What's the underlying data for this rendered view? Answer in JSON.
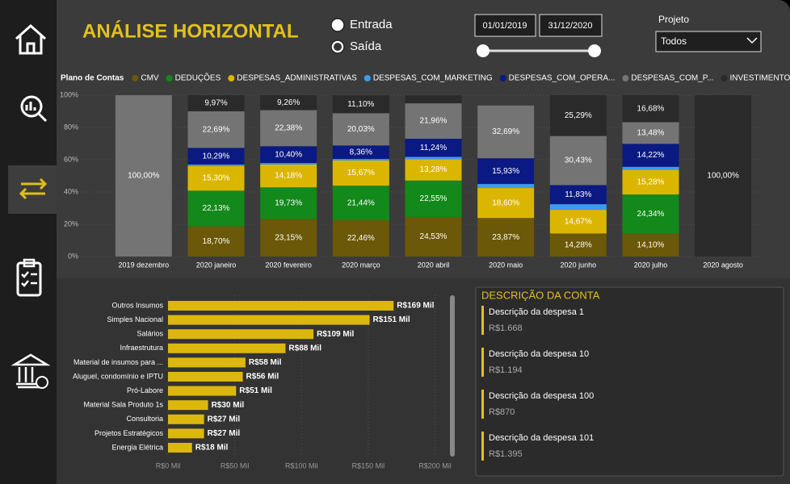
{
  "header": {
    "title": "ANÁLISE HORIZONTAL",
    "flow_options": [
      "Entrada",
      "Saída"
    ],
    "selected_flow": 1,
    "start_date": "01/01/2019",
    "end_date": "31/12/2020",
    "project_label": "Projeto",
    "project_value": "Todos"
  },
  "chart_data": [
    {
      "type": "stacked_bar",
      "legend_title": "Plano de Contas",
      "legend": "top",
      "grid": true,
      "categories": [
        "2019 dezembro",
        "2020 janeiro",
        "2020 fevereiro",
        "2020 março",
        "2020 abril",
        "2020 maio",
        "2020 junho",
        "2020 julho",
        "2020 agosto"
      ],
      "ylim": [
        0,
        100
      ],
      "yticks": [
        {
          "value": 0,
          "label": "0%"
        },
        {
          "value": 20,
          "label": "20%"
        },
        {
          "value": 40,
          "label": "40%"
        },
        {
          "value": 60,
          "label": "60%"
        },
        {
          "value": 80,
          "label": "80%"
        },
        {
          "value": 100,
          "label": "100%"
        }
      ],
      "series": [
        {
          "name": "CMV",
          "color": "#6b5808",
          "values": [
            null,
            18.7,
            23.15,
            22.46,
            24.53,
            23.87,
            14.28,
            14.1,
            null
          ],
          "value_labels": [
            null,
            "18,70%",
            "23,15%",
            "22,46%",
            "24,53%",
            "23,87%",
            "14,28%",
            "14,10%",
            null
          ]
        },
        {
          "name": "DEDUÇÕES",
          "color": "#12891a",
          "values": [
            null,
            22.13,
            19.73,
            21.44,
            22.55,
            null,
            null,
            24.34,
            null
          ],
          "value_labels": [
            null,
            "22,13%",
            "19,73%",
            "21,44%",
            "22,55%",
            null,
            null,
            "24,34%",
            null
          ]
        },
        {
          "name": "DESPESAS_ADMINISTRATIVAS",
          "color": "#dbb600",
          "values": [
            null,
            15.3,
            14.18,
            15.67,
            13.28,
            18.6,
            14.67,
            15.28,
            null
          ],
          "value_labels": [
            null,
            "15,30%",
            "14,18%",
            "15,67%",
            "13,28%",
            "18,60%",
            "14,67%",
            "15,28%",
            null
          ]
        },
        {
          "name": "DESPESAS_COM_MARKETING",
          "color": "#3b9bf0",
          "values": [
            null,
            0.9,
            0.9,
            0.9,
            1.4,
            2.5,
            3.5,
            1.9,
            null
          ],
          "value_labels": [
            null,
            null,
            null,
            null,
            null,
            null,
            null,
            null,
            null
          ]
        },
        {
          "name": "DESPESAS_COM_OPERA...",
          "color": "#0b1a82",
          "values": [
            null,
            10.29,
            10.4,
            8.36,
            11.24,
            15.93,
            11.83,
            14.22,
            null
          ],
          "value_labels": [
            null,
            "10,29%",
            "10,40%",
            "8,36%",
            "11,24%",
            "15,93%",
            "11,83%",
            "14,22%",
            null
          ]
        },
        {
          "name": "DESPESAS_COM_P...",
          "color": "#747474",
          "values": [
            100,
            22.69,
            22.38,
            20.03,
            21.96,
            32.69,
            30.43,
            13.48,
            null
          ],
          "value_labels": [
            "100,00%",
            "22,69%",
            "22,38%",
            "20,03%",
            "21,96%",
            "32,69%",
            "30,43%",
            "13,48%",
            null
          ]
        },
        {
          "name": "INVESTIMENTOS",
          "color": "#2a2a2a",
          "values": [
            null,
            9.97,
            9.26,
            11.1,
            5,
            null,
            25.29,
            16.68,
            100
          ],
          "value_labels": [
            null,
            "9,97%",
            "9,26%",
            "11,10%",
            null,
            null,
            "25,29%",
            "16,68%",
            "100,00%"
          ]
        }
      ]
    },
    {
      "type": "hbar",
      "color": "#dcb80e",
      "grid": true,
      "categories": [
        "Outros Insumos",
        "Simples Nacional",
        "Salários",
        "Infraestrutura",
        "Material de insumos para ...",
        "Aluguel, condomínio e IPTU",
        "Pró-Labore",
        "Material Sala Produto 1s",
        "Consultoria",
        "Projetos Estratégicos",
        "Energia Elétrica"
      ],
      "values": [
        169,
        151,
        109,
        88,
        58,
        56,
        51,
        30,
        27,
        27,
        18
      ],
      "value_labels": [
        "R$169 Mil",
        "R$151 Mil",
        "R$109 Mil",
        "R$88 Mil",
        "R$58 Mil",
        "R$56 Mil",
        "R$51 Mil",
        "R$30 Mil",
        "R$27 Mil",
        "R$27 Mil",
        "R$18 Mil"
      ],
      "xlim": [
        0,
        213
      ],
      "xticks": [
        {
          "value": 0,
          "label": "R$0 Mil"
        },
        {
          "value": 50,
          "label": "R$50 Mil"
        },
        {
          "value": 100,
          "label": "R$100 Mil"
        },
        {
          "value": 150,
          "label": "R$150 Mil"
        },
        {
          "value": 200,
          "label": "R$200 Mil"
        }
      ]
    }
  ],
  "account_panel": {
    "title": "DESCRIÇÃO DA CONTA",
    "items": [
      {
        "name": "Descrição da despesa 1",
        "amount": "R$1.668"
      },
      {
        "name": "Descrição da despesa 10",
        "amount": "R$1.194"
      },
      {
        "name": "Descrição da despesa 100",
        "amount": "R$870"
      },
      {
        "name": "Descrição da despesa 101",
        "amount": "R$1.395"
      }
    ]
  }
}
